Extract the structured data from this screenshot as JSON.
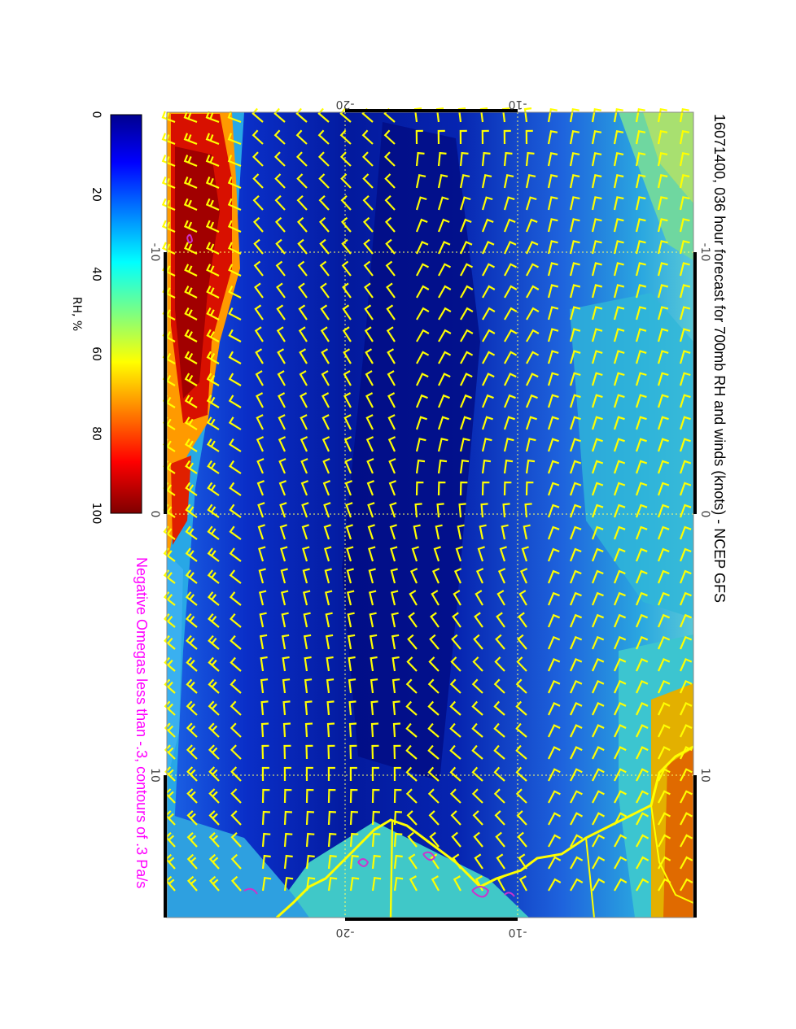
{
  "title": "16071400, 036 hour forecast for 700mb RH and winds (knots) - NCEP GFS",
  "subtitle": "Negative Omegas less than -.3, contours of .3 Pa/s",
  "colors": {
    "subtitle": "#ff00ff",
    "wind_barbs": "#ffff00",
    "coastline": "#ffff00",
    "omega_contours": "#cc33cc",
    "gridlines": "#ffff66"
  },
  "colorbar": {
    "label": "RH, %",
    "ticks": [
      "0",
      "20",
      "40",
      "60",
      "80",
      "100"
    ],
    "colormap": "jet"
  },
  "axes": {
    "top_ticks": [
      "-20",
      "-10"
    ],
    "bottom_ticks": [
      "-20",
      "-10"
    ],
    "left_ticks": [
      "-10",
      "0",
      "10"
    ],
    "right_ticks": [
      "-10",
      "0",
      "10"
    ]
  }
}
